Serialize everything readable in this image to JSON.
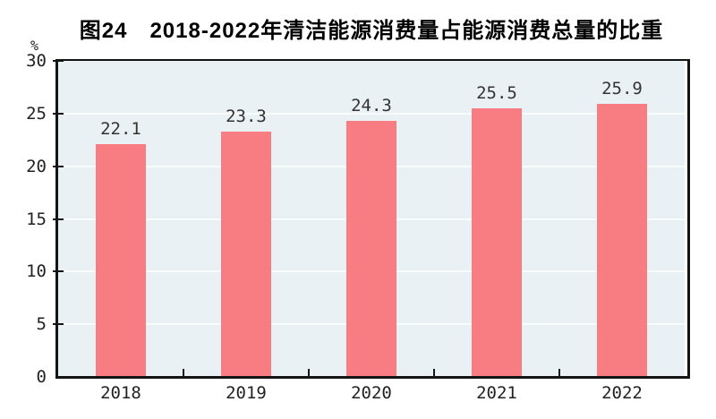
{
  "chart_data": {
    "type": "bar",
    "title": "图24　2018-2022年清洁能源消费量占能源消费总量的比重",
    "unit_label": "%",
    "categories": [
      "2018",
      "2019",
      "2020",
      "2021",
      "2022"
    ],
    "values": [
      22.1,
      23.3,
      24.3,
      25.5,
      25.9
    ],
    "value_labels": [
      "22.1",
      "23.3",
      "24.3",
      "25.5",
      "25.9"
    ],
    "ylim": [
      0,
      30
    ],
    "yticks": [
      0,
      5,
      10,
      15,
      20,
      25,
      30
    ],
    "gridlines_at": [
      5,
      10,
      15,
      20,
      25
    ],
    "legend": "none",
    "xlabel": "",
    "ylabel": "%",
    "colors": {
      "bar": "#f87d82",
      "plot_background": "#e9f1f4",
      "gridline": "#f8fcfc",
      "axis": "#141414",
      "title_text": "#000000",
      "label_text": "#333333"
    }
  }
}
